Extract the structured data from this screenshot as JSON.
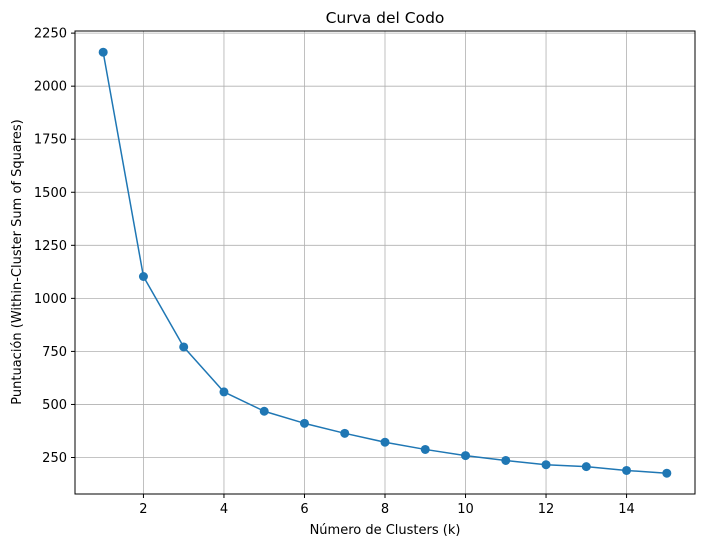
{
  "chart_data": {
    "type": "line",
    "title": "Curva del Codo",
    "xlabel": "Número de Clusters (k)",
    "ylabel": "Puntuación (Within-Cluster Sum of Squares)",
    "x": [
      1,
      2,
      3,
      4,
      5,
      6,
      7,
      8,
      9,
      10,
      11,
      12,
      13,
      14,
      15
    ],
    "series": [
      {
        "values": [
          2160,
          1103,
          771,
          559,
          468,
          411,
          364,
          322,
          288,
          259,
          236,
          216,
          207,
          189,
          176
        ],
        "color": "#1f77b4",
        "marker": "circle"
      }
    ],
    "xticks": [
      2,
      4,
      6,
      8,
      10,
      12,
      14
    ],
    "yticks": [
      250,
      500,
      750,
      1000,
      1250,
      1500,
      1750,
      2000,
      2250
    ],
    "xlim": [
      0.3,
      15.7
    ],
    "ylim": [
      78,
      2260
    ],
    "grid": true
  }
}
